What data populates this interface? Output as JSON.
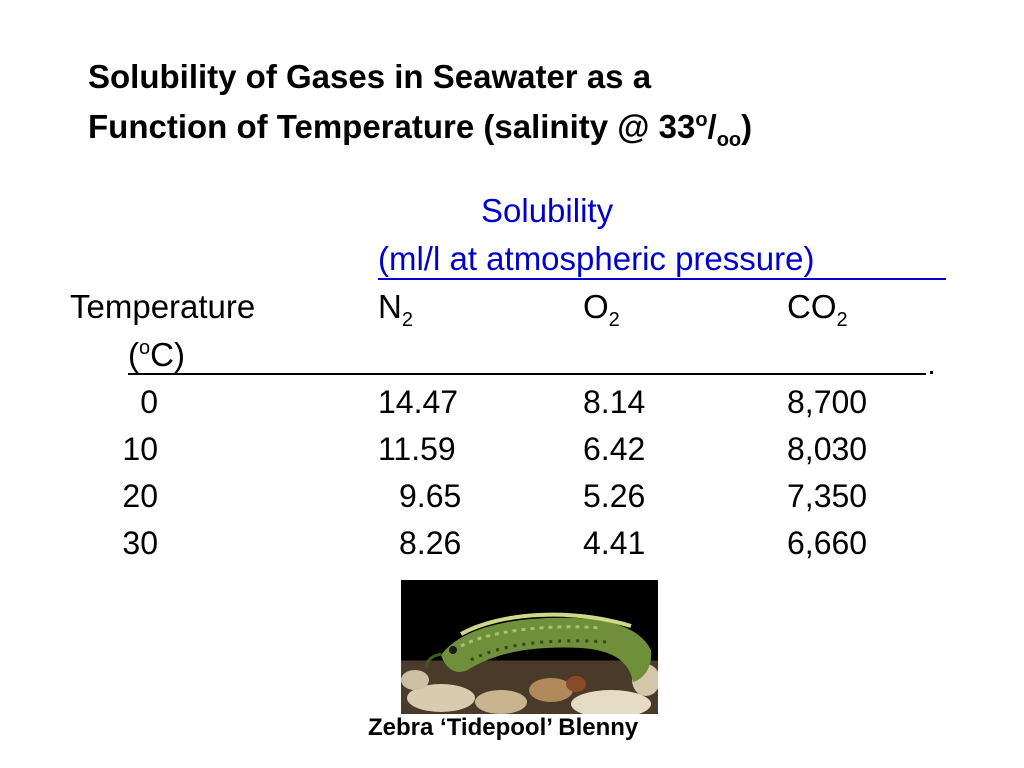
{
  "title": {
    "line1": "Solubility of Gases in Seawater as a",
    "line2_pre": "Function of Temperature (salinity @ 33",
    "line2_sup": "o",
    "line2_slash": "/",
    "line2_sub": "oo",
    "line2_end": ")"
  },
  "header": {
    "solubility": "Solubility",
    "units": "(ml/l at atmospheric pressure)",
    "temperature": "Temperature",
    "unit_open": "(",
    "unit_sup": "o",
    "unit_close": "C)",
    "n_base": "N",
    "n_sub": "2",
    "o_base": "O",
    "o_sub": "2",
    "co_base": "CO",
    "co_sub": "2"
  },
  "rows": [
    {
      "temp": "0",
      "n2": "14.47",
      "o2": "8.14",
      "co2": "8,700"
    },
    {
      "temp": "10",
      "n2": "11.59",
      "o2": "6.42",
      "co2": "8,030"
    },
    {
      "temp": "20",
      "n2": "9.65",
      "o2": "5.26",
      "co2": "7,350"
    },
    {
      "temp": "30",
      "n2": "8.26",
      "o2": "4.41",
      "co2": "6,660"
    }
  ],
  "caption": "Zebra ‘Tidepool’ Blenny",
  "colors": {
    "heading_blue": "#0000cc",
    "text": "#000000"
  }
}
